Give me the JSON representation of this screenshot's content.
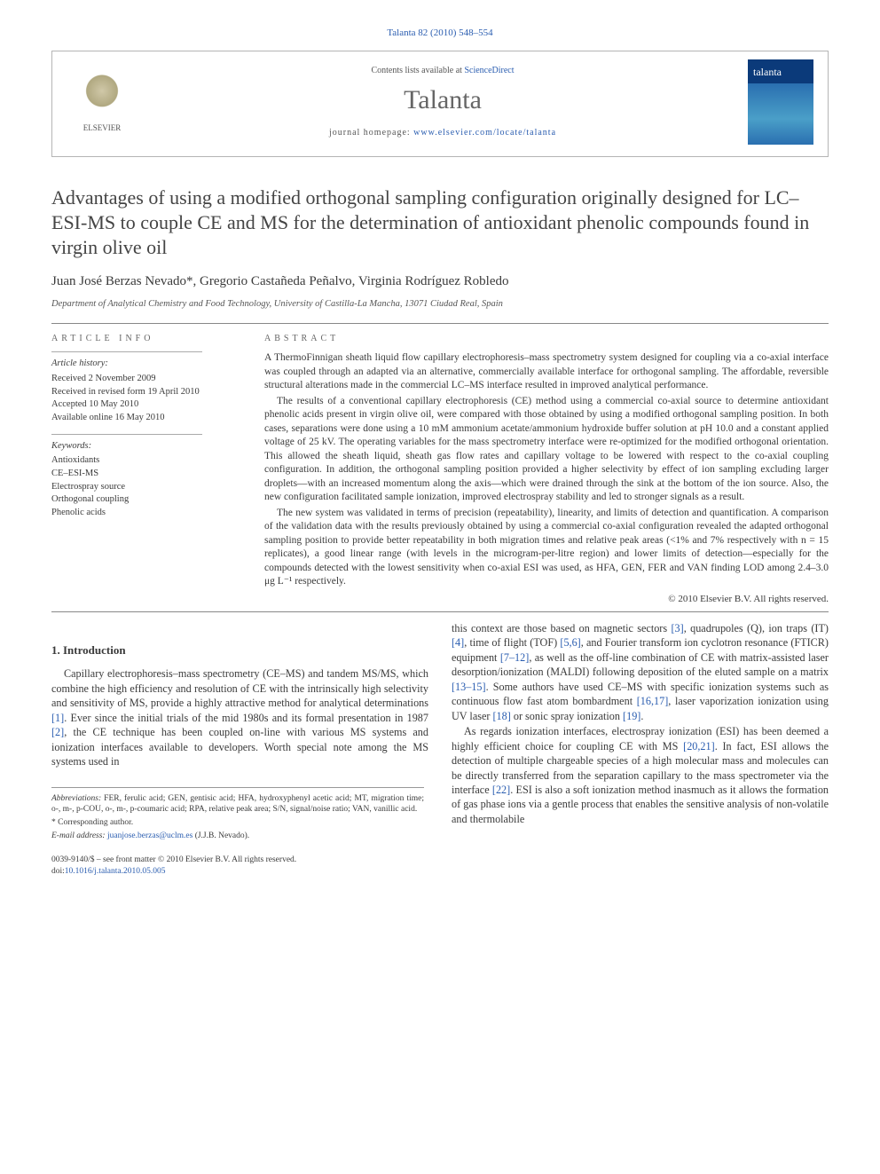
{
  "header": {
    "citation": "Talanta 82 (2010) 548–554",
    "contents_prefix": "Contents lists available at ",
    "contents_link": "ScienceDirect",
    "journal_name": "Talanta",
    "homepage_prefix": "journal homepage: ",
    "homepage_link": "www.elsevier.com/locate/talanta",
    "publisher": "ELSEVIER",
    "cover_label": "talanta"
  },
  "article": {
    "title": "Advantages of using a modified orthogonal sampling configuration originally designed for LC–ESI-MS to couple CE and MS for the determination of antioxidant phenolic compounds found in virgin olive oil",
    "authors": "Juan José Berzas Nevado*, Gregorio Castañeda Peñalvo, Virginia Rodríguez Robledo",
    "affiliation": "Department of Analytical Chemistry and Food Technology, University of Castilla-La Mancha, 13071 Ciudad Real, Spain"
  },
  "info": {
    "heading": "article info",
    "history_label": "Article history:",
    "history": [
      "Received 2 November 2009",
      "Received in revised form 19 April 2010",
      "Accepted 10 May 2010",
      "Available online 16 May 2010"
    ],
    "keywords_label": "Keywords:",
    "keywords": [
      "Antioxidants",
      "CE–ESI-MS",
      "Electrospray source",
      "Orthogonal coupling",
      "Phenolic acids"
    ]
  },
  "abstract": {
    "heading": "abstract",
    "p1": "A ThermoFinnigan sheath liquid flow capillary electrophoresis–mass spectrometry system designed for coupling via a co-axial interface was coupled through an adapted via an alternative, commercially available interface for orthogonal sampling. The affordable, reversible structural alterations made in the commercial LC–MS interface resulted in improved analytical performance.",
    "p2": "The results of a conventional capillary electrophoresis (CE) method using a commercial co-axial source to determine antioxidant phenolic acids present in virgin olive oil, were compared with those obtained by using a modified orthogonal sampling position. In both cases, separations were done using a 10 mM ammonium acetate/ammonium hydroxide buffer solution at pH 10.0 and a constant applied voltage of 25 kV. The operating variables for the mass spectrometry interface were re-optimized for the modified orthogonal orientation. This allowed the sheath liquid, sheath gas flow rates and capillary voltage to be lowered with respect to the co-axial coupling configuration. In addition, the orthogonal sampling position provided a higher selectivity by effect of ion sampling excluding larger droplets—with an increased momentum along the axis—which were drained through the sink at the bottom of the ion source. Also, the new configuration facilitated sample ionization, improved electrospray stability and led to stronger signals as a result.",
    "p3": "The new system was validated in terms of precision (repeatability), linearity, and limits of detection and quantification. A comparison of the validation data with the results previously obtained by using a commercial co-axial configuration revealed the adapted orthogonal sampling position to provide better repeatability in both migration times and relative peak areas (<1% and 7% respectively with n = 15 replicates), a good linear range (with levels in the microgram-per-litre region) and lower limits of detection—especially for the compounds detected with the lowest sensitivity when co-axial ESI was used, as HFA, GEN, FER and VAN finding LOD among 2.4–3.0 μg L⁻¹ respectively.",
    "copyright": "© 2010 Elsevier B.V. All rights reserved."
  },
  "body": {
    "section1_head": "1.  Introduction",
    "s1p1a": "Capillary electrophoresis–mass spectrometry (CE–MS) and tandem MS/MS, which combine the high efficiency and resolution of CE with the intrinsically high selectivity and sensitivity of MS, provide a highly attractive method for analytical determinations ",
    "s1p1b": ". Ever since the initial trials of the mid 1980s and its formal presentation in 1987 ",
    "s1p1c": ", the CE technique has been coupled on-line with various MS systems and ionization interfaces available to developers. Worth special note among the MS systems used in ",
    "s1p2a": "this context are those based on magnetic sectors ",
    "s1p2b": ", quadrupoles (Q), ion traps (IT) ",
    "s1p2c": ", time of flight (TOF) ",
    "s1p2d": ", and Fourier transform ion cyclotron resonance (FTICR) equipment ",
    "s1p2e": ", as well as the off-line combination of CE with matrix-assisted laser desorption/ionization (MALDI) following deposition of the eluted sample on a matrix ",
    "s1p2f": ". Some authors have used CE–MS with specific ionization systems such as continuous flow fast atom bombardment ",
    "s1p2g": ", laser vaporization ionization using UV laser ",
    "s1p2h": " or sonic spray ionization ",
    "s1p2i": ".",
    "s1p3a": "As regards ionization interfaces, electrospray ionization (ESI) has been deemed a highly efficient choice for coupling CE with MS ",
    "s1p3b": ". In fact, ESI allows the detection of multiple chargeable species of a high molecular mass and molecules can be directly transferred from the separation capillary to the mass spectrometer via the interface ",
    "s1p3c": ". ESI is also a soft ionization method inasmuch as it allows the formation of gas phase ions via a gentle process that enables the sensitive analysis of non-volatile and thermolabile",
    "refs": {
      "r1": "[1]",
      "r2": "[2]",
      "r3": "[3]",
      "r4": "[4]",
      "r56": "[5,6]",
      "r712": "[7–12]",
      "r1315": "[13–15]",
      "r1617": "[16,17]",
      "r18": "[18]",
      "r19": "[19]",
      "r2021": "[20,21]",
      "r22": "[22]"
    }
  },
  "footnotes": {
    "abbrev_label": "Abbreviations:",
    "abbrev": " FER, ferulic acid; GEN, gentisic acid; HFA, hydroxyphenyl acetic acid; MT, migration time; o-, m-, p-COU, o-, m-, p-coumaric acid; RPA, relative peak area; S/N, signal/noise ratio; VAN, vanillic acid.",
    "corresp": "* Corresponding author.",
    "email_label": "E-mail address: ",
    "email": "juanjose.berzas@uclm.es",
    "email_who": " (J.J.B. Nevado)."
  },
  "bottom": {
    "issn": "0039-9140/$ – see front matter © 2010 Elsevier B.V. All rights reserved.",
    "doi_label": "doi:",
    "doi": "10.1016/j.talanta.2010.05.005"
  },
  "colors": {
    "link": "#2a5db0",
    "text": "#3a3a3a",
    "rule": "#888888"
  }
}
